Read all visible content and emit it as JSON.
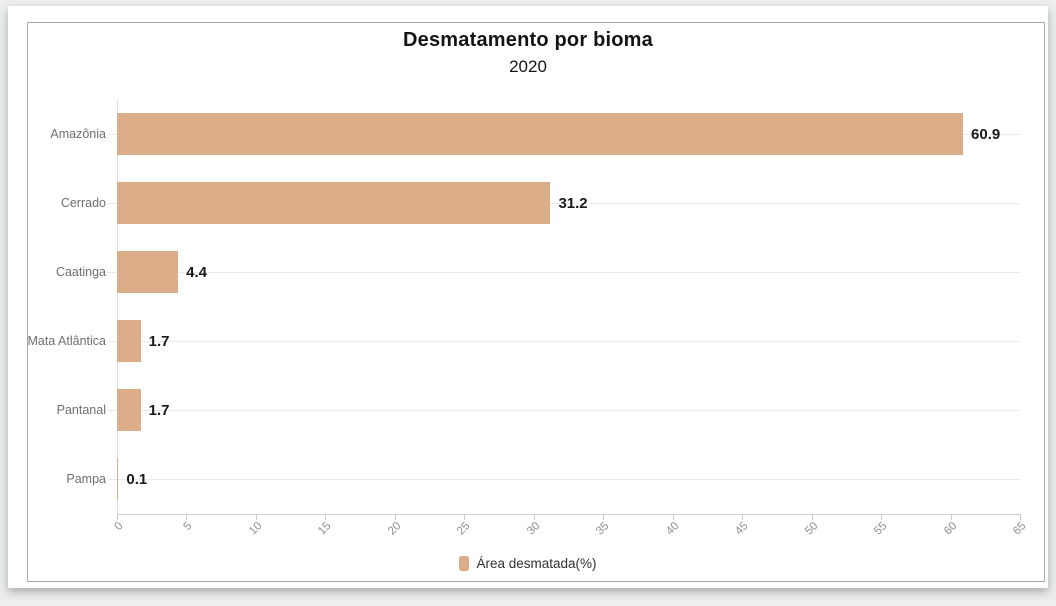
{
  "chart_data": {
    "type": "bar",
    "orientation": "horizontal",
    "title": "Desmatamento por bioma",
    "subtitle": "2020",
    "categories": [
      "Amazônia",
      "Cerrado",
      "Caatinga",
      "Mata Atlântica",
      "Pantanal",
      "Pampa"
    ],
    "series": [
      {
        "name": "Área desmatada(%)",
        "values": [
          60.9,
          31.2,
          4.4,
          1.7,
          1.7,
          0.1
        ]
      }
    ],
    "value_labels": [
      "60.9",
      "31.2",
      "4.4",
      "1.7",
      "1.7",
      "0.1"
    ],
    "xlim": [
      0,
      65
    ],
    "x_tick_step": 5,
    "x_tick_labels": [
      "0",
      "5",
      "10",
      "15",
      "20",
      "25",
      "30",
      "35",
      "40",
      "45",
      "50",
      "55",
      "60",
      "65"
    ],
    "x_tick_rotation_deg": -45,
    "grid": "horizontal-category-lines-only",
    "legend": {
      "label": "Área desmatada(%)",
      "position": "bottom-center"
    },
    "colors": {
      "bar": "#dbae89",
      "gridline": "#e9e9e9",
      "axis_line": "#cfcfcf",
      "x_tick_label": "#8f8f8f",
      "category_label": "#6f6f6f",
      "value_label": "#1a1a1a",
      "title": "#141414",
      "frame_border": "#a9a9a9",
      "card_background": "#ffffff",
      "page_background": "#eceeef"
    }
  }
}
